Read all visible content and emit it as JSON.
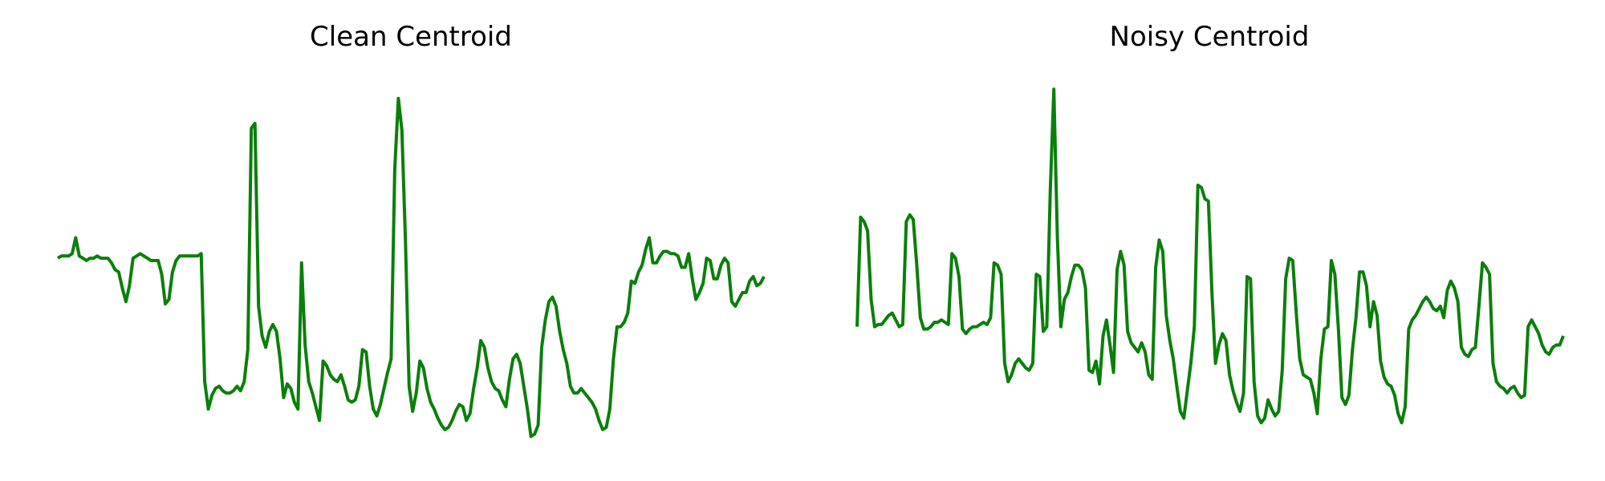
{
  "colors": {
    "series": "#0a7f0a",
    "background": "#ffffff"
  },
  "chart_data": [
    {
      "type": "line",
      "title": "Clean Centroid",
      "xlabel": "",
      "ylabel": "",
      "axes_visible": false,
      "grid": false,
      "ylim": [
        -0.55,
        1.05
      ],
      "series": [
        {
          "values": [
            0.26,
            0.27,
            0.27,
            0.27,
            0.28,
            0.35,
            0.27,
            0.26,
            0.25,
            0.26,
            0.26,
            0.27,
            0.26,
            0.26,
            0.26,
            0.24,
            0.21,
            0.2,
            0.13,
            0.07,
            0.14,
            0.26,
            0.27,
            0.28,
            0.27,
            0.26,
            0.25,
            0.25,
            0.25,
            0.19,
            0.06,
            0.08,
            0.2,
            0.25,
            0.27,
            0.27,
            0.27,
            0.27,
            0.27,
            0.27,
            0.28,
            -0.28,
            -0.4,
            -0.34,
            -0.31,
            -0.3,
            -0.32,
            -0.33,
            -0.33,
            -0.32,
            -0.3,
            -0.32,
            -0.28,
            -0.14,
            0.83,
            0.85,
            0.05,
            -0.08,
            -0.13,
            -0.06,
            -0.03,
            -0.06,
            -0.18,
            -0.35,
            -0.29,
            -0.31,
            -0.37,
            -0.4,
            0.24,
            -0.12,
            -0.28,
            -0.33,
            -0.39,
            -0.45,
            -0.19,
            -0.21,
            -0.25,
            -0.27,
            -0.28,
            -0.25,
            -0.3,
            -0.36,
            -0.37,
            -0.36,
            -0.3,
            -0.14,
            -0.15,
            -0.3,
            -0.4,
            -0.43,
            -0.38,
            -0.31,
            -0.24,
            -0.18,
            0.65,
            0.96,
            0.82,
            0.33,
            -0.3,
            -0.41,
            -0.33,
            -0.19,
            -0.22,
            -0.31,
            -0.37,
            -0.4,
            -0.44,
            -0.47,
            -0.49,
            -0.48,
            -0.45,
            -0.41,
            -0.38,
            -0.39,
            -0.45,
            -0.42,
            -0.31,
            -0.22,
            -0.1,
            -0.13,
            -0.22,
            -0.28,
            -0.31,
            -0.32,
            -0.36,
            -0.39,
            -0.27,
            -0.18,
            -0.16,
            -0.2,
            -0.3,
            -0.4,
            -0.52,
            -0.51,
            -0.47,
            -0.13,
            -0.01,
            0.07,
            0.09,
            0.05,
            -0.06,
            -0.14,
            -0.2,
            -0.3,
            -0.33,
            -0.33,
            -0.31,
            -0.33,
            -0.35,
            -0.37,
            -0.4,
            -0.45,
            -0.49,
            -0.48,
            -0.4,
            -0.18,
            -0.04,
            -0.04,
            -0.02,
            0.02,
            0.16,
            0.15,
            0.2,
            0.23,
            0.3,
            0.35,
            0.24,
            0.24,
            0.27,
            0.29,
            0.29,
            0.28,
            0.28,
            0.27,
            0.22,
            0.22,
            0.28,
            0.17,
            0.08,
            0.11,
            0.15,
            0.26,
            0.25,
            0.17,
            0.17,
            0.23,
            0.26,
            0.24,
            0.07,
            0.05,
            0.08,
            0.11,
            0.11,
            0.16,
            0.18,
            0.14,
            0.15,
            0.18
          ]
        }
      ]
    },
    {
      "type": "line",
      "title": "Noisy Centroid",
      "xlabel": "",
      "ylabel": "",
      "axes_visible": false,
      "grid": false,
      "ylim": [
        -0.55,
        1.05
      ],
      "series": [
        {
          "values": [
            -0.04,
            0.44,
            0.42,
            0.38,
            0.08,
            -0.04,
            -0.03,
            -0.03,
            -0.01,
            0.01,
            0.02,
            -0.01,
            -0.04,
            -0.03,
            0.42,
            0.45,
            0.43,
            0.23,
            0.0,
            -0.05,
            -0.05,
            -0.04,
            -0.02,
            -0.02,
            -0.01,
            -0.02,
            -0.03,
            0.28,
            0.26,
            0.18,
            -0.05,
            -0.07,
            -0.05,
            -0.04,
            -0.04,
            -0.03,
            -0.02,
            -0.03,
            0.0,
            0.24,
            0.23,
            0.19,
            -0.2,
            -0.28,
            -0.25,
            -0.2,
            -0.18,
            -0.2,
            -0.22,
            -0.23,
            -0.2,
            0.19,
            0.18,
            -0.06,
            -0.04,
            0.56,
            1.0,
            0.35,
            -0.04,
            0.08,
            0.11,
            0.18,
            0.23,
            0.23,
            0.21,
            0.13,
            -0.23,
            -0.24,
            -0.19,
            -0.29,
            -0.08,
            -0.01,
            -0.12,
            -0.24,
            0.21,
            0.29,
            0.23,
            -0.06,
            -0.11,
            -0.13,
            -0.15,
            -0.11,
            -0.15,
            -0.25,
            -0.27,
            0.22,
            0.34,
            0.29,
            0.01,
            -0.1,
            -0.18,
            -0.3,
            -0.41,
            -0.44,
            -0.32,
            -0.2,
            -0.04,
            0.58,
            0.57,
            0.52,
            0.51,
            0.11,
            -0.2,
            -0.12,
            -0.07,
            -0.1,
            -0.25,
            -0.32,
            -0.37,
            -0.41,
            -0.33,
            0.18,
            0.17,
            -0.28,
            -0.43,
            -0.46,
            -0.44,
            -0.36,
            -0.4,
            -0.43,
            -0.41,
            -0.23,
            0.17,
            0.26,
            0.25,
            0.02,
            -0.18,
            -0.25,
            -0.26,
            -0.27,
            -0.33,
            -0.42,
            -0.18,
            -0.05,
            -0.04,
            0.25,
            0.19,
            -0.05,
            -0.35,
            -0.38,
            -0.34,
            -0.14,
            0.0,
            0.2,
            0.2,
            0.14,
            -0.04,
            0.07,
            0.01,
            -0.19,
            -0.26,
            -0.29,
            -0.3,
            -0.34,
            -0.42,
            -0.46,
            -0.39,
            -0.05,
            -0.01,
            0.01,
            0.04,
            0.07,
            0.09,
            0.07,
            0.04,
            0.03,
            0.05,
            0.0,
            0.12,
            0.16,
            0.13,
            0.07,
            -0.13,
            -0.16,
            -0.17,
            -0.14,
            -0.13,
            0.05,
            0.24,
            0.22,
            0.19,
            -0.2,
            -0.28,
            -0.3,
            -0.31,
            -0.33,
            -0.31,
            -0.3,
            -0.33,
            -0.35,
            -0.34,
            -0.04,
            -0.01,
            -0.04,
            -0.07,
            -0.12,
            -0.15,
            -0.16,
            -0.13,
            -0.12,
            -0.12,
            -0.08
          ]
        }
      ]
    }
  ]
}
